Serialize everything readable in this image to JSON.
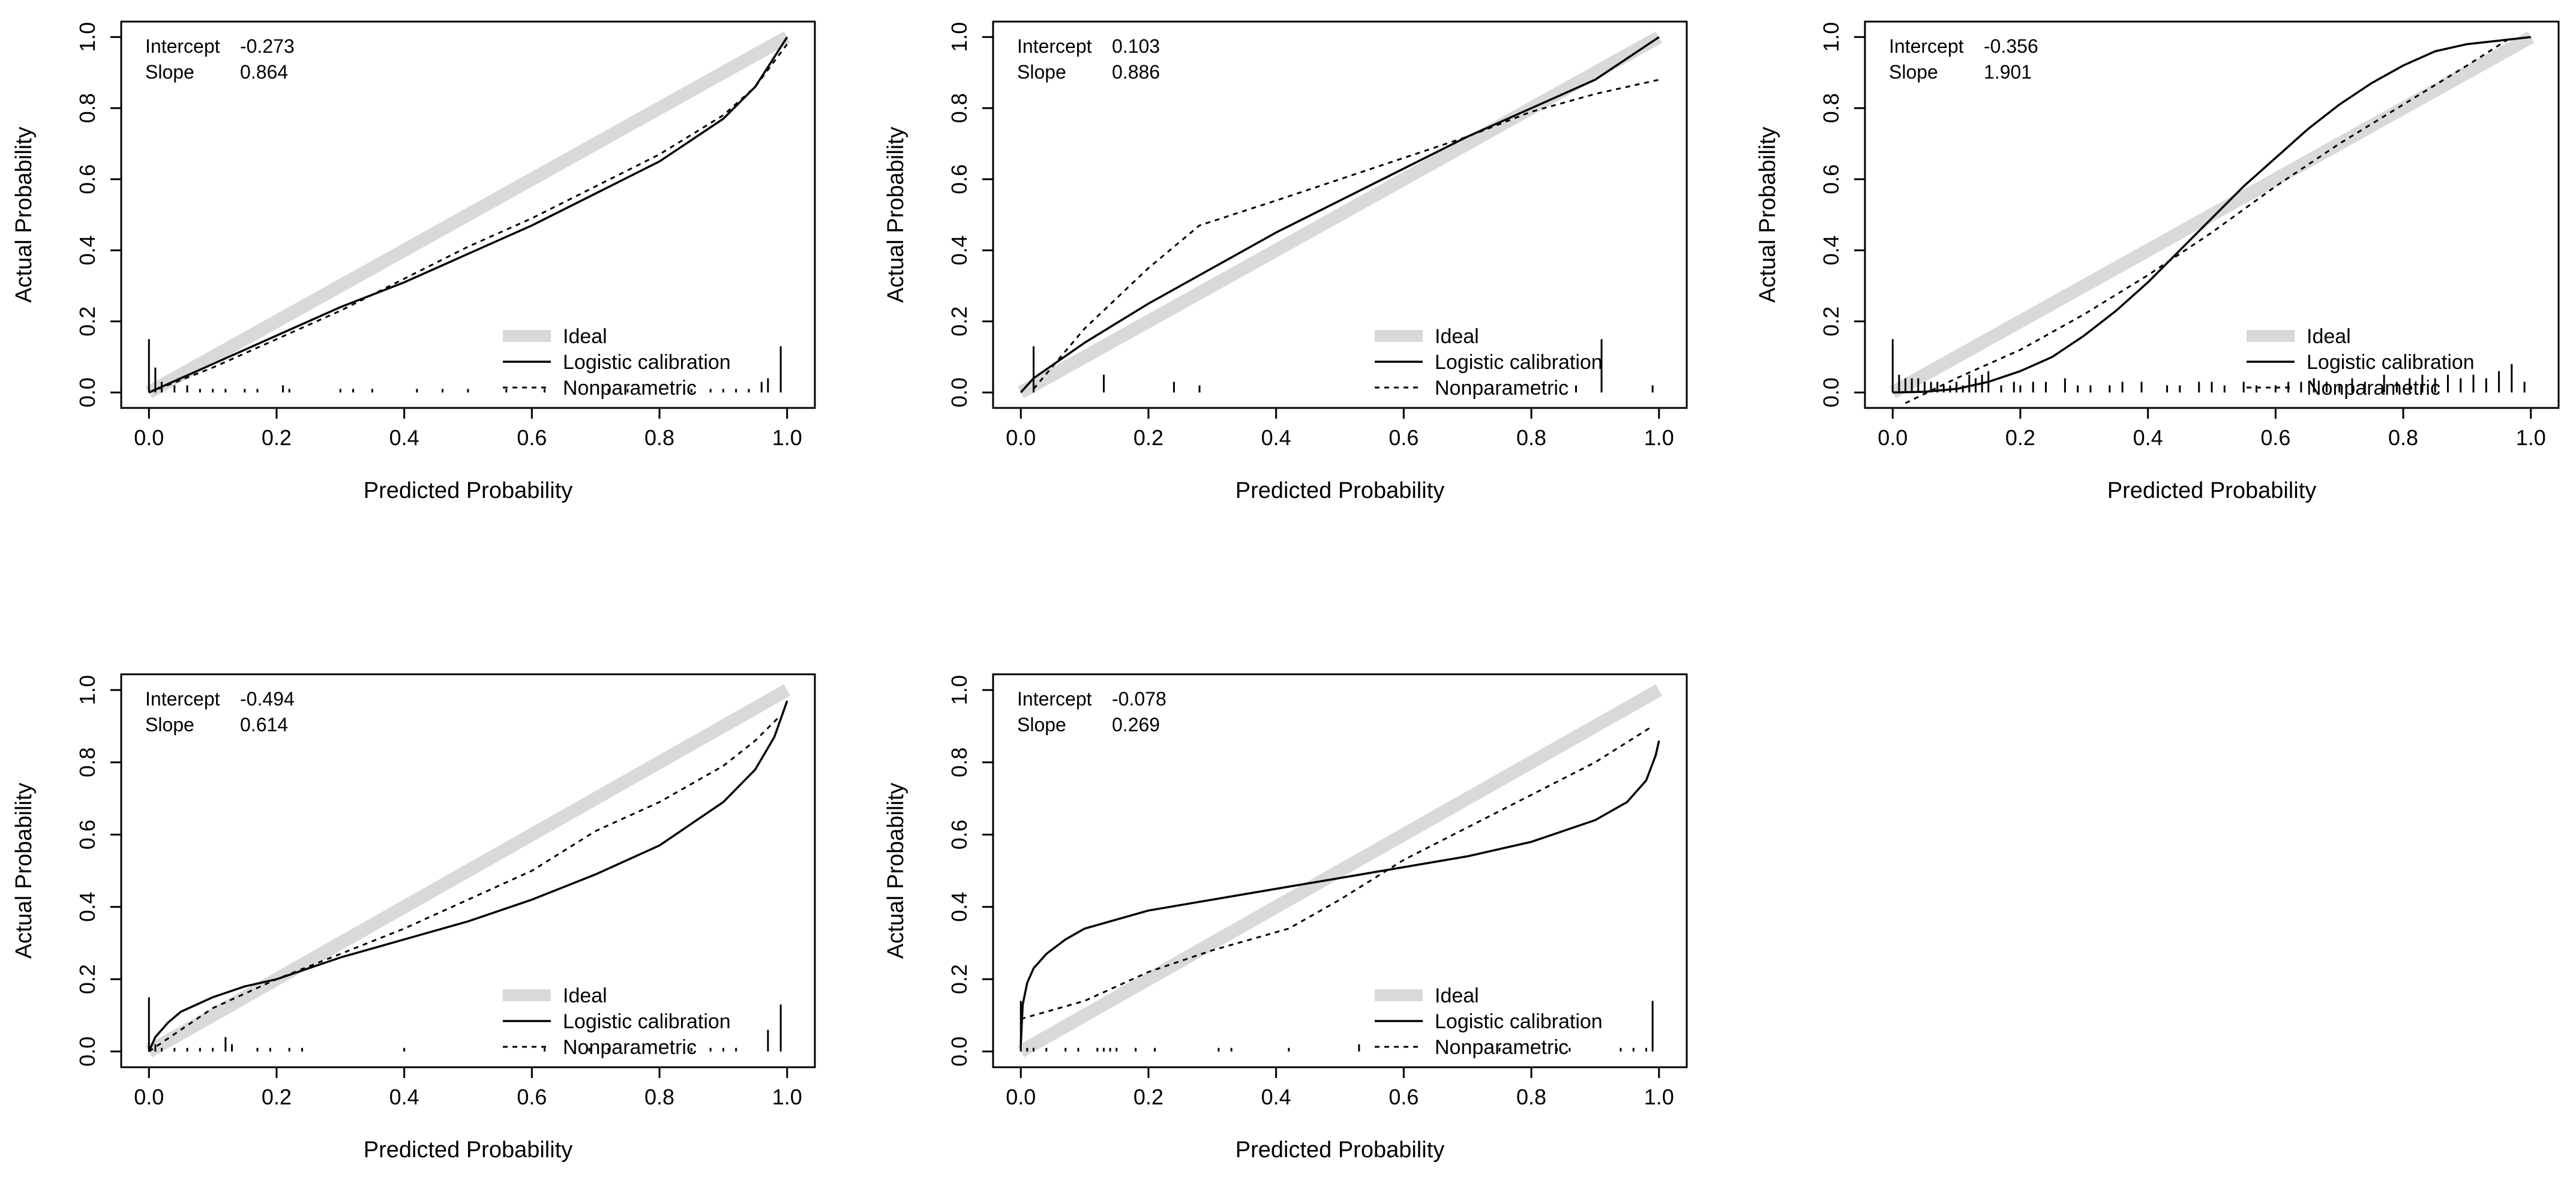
{
  "figure": {
    "axis_labels": {
      "x": "Predicted Probability",
      "y": "Actual Probability"
    },
    "ticks": [
      "0.0",
      "0.2",
      "0.4",
      "0.6",
      "0.8",
      "1.0"
    ],
    "legend": [
      "Ideal",
      "Logistic calibration",
      "Nonparametric"
    ],
    "stat_labels": {
      "intercept": "Intercept",
      "slope": "Slope"
    },
    "colors": {
      "ideal": "#d9d9d9",
      "lines": "#000000",
      "frame": "#000000",
      "background": "#ffffff"
    }
  },
  "chart_data": [
    {
      "type": "line",
      "title": "",
      "xlabel": "Predicted Probability",
      "ylabel": "Actual Probability",
      "xlim": [
        0,
        1
      ],
      "ylim": [
        0,
        1
      ],
      "intercept": "-0.273",
      "slope": "0.864",
      "legend_position": "bottom-right",
      "series": [
        {
          "name": "Ideal",
          "x": [
            0,
            1
          ],
          "y": [
            0,
            1
          ]
        },
        {
          "name": "Logistic calibration",
          "x": [
            0,
            0.05,
            0.1,
            0.2,
            0.3,
            0.4,
            0.5,
            0.6,
            0.7,
            0.8,
            0.9,
            0.95,
            1.0
          ],
          "y": [
            0,
            0.04,
            0.08,
            0.16,
            0.24,
            0.31,
            0.39,
            0.47,
            0.56,
            0.65,
            0.77,
            0.86,
            1.0
          ]
        },
        {
          "name": "Nonparametric",
          "x": [
            0,
            0.05,
            0.1,
            0.2,
            0.3,
            0.4,
            0.5,
            0.6,
            0.7,
            0.8,
            0.9,
            0.95,
            1.0
          ],
          "y": [
            0,
            0.035,
            0.07,
            0.15,
            0.23,
            0.32,
            0.41,
            0.49,
            0.58,
            0.67,
            0.78,
            0.86,
            0.98
          ]
        }
      ],
      "rug": [
        {
          "x": 0.0,
          "h": 0.15
        },
        {
          "x": 0.01,
          "h": 0.07
        },
        {
          "x": 0.02,
          "h": 0.03
        },
        {
          "x": 0.04,
          "h": 0.02
        },
        {
          "x": 0.06,
          "h": 0.02
        },
        {
          "x": 0.08,
          "h": 0.01
        },
        {
          "x": 0.1,
          "h": 0.01
        },
        {
          "x": 0.12,
          "h": 0.01
        },
        {
          "x": 0.15,
          "h": 0.01
        },
        {
          "x": 0.17,
          "h": 0.01
        },
        {
          "x": 0.21,
          "h": 0.02
        },
        {
          "x": 0.22,
          "h": 0.01
        },
        {
          "x": 0.3,
          "h": 0.01
        },
        {
          "x": 0.32,
          "h": 0.01
        },
        {
          "x": 0.35,
          "h": 0.01
        },
        {
          "x": 0.42,
          "h": 0.01
        },
        {
          "x": 0.46,
          "h": 0.01
        },
        {
          "x": 0.5,
          "h": 0.01
        },
        {
          "x": 0.56,
          "h": 0.01
        },
        {
          "x": 0.62,
          "h": 0.01
        },
        {
          "x": 0.72,
          "h": 0.01
        },
        {
          "x": 0.75,
          "h": 0.01
        },
        {
          "x": 0.85,
          "h": 0.01
        },
        {
          "x": 0.88,
          "h": 0.01
        },
        {
          "x": 0.9,
          "h": 0.01
        },
        {
          "x": 0.92,
          "h": 0.01
        },
        {
          "x": 0.94,
          "h": 0.01
        },
        {
          "x": 0.96,
          "h": 0.03
        },
        {
          "x": 0.97,
          "h": 0.04
        },
        {
          "x": 0.99,
          "h": 0.13
        }
      ]
    },
    {
      "type": "line",
      "title": "",
      "xlabel": "Predicted Probability",
      "ylabel": "Actual Probability",
      "xlim": [
        0,
        1
      ],
      "ylim": [
        0,
        1
      ],
      "intercept": "0.103",
      "slope": "0.886",
      "legend_position": "bottom-right",
      "series": [
        {
          "name": "Ideal",
          "x": [
            0,
            1
          ],
          "y": [
            0,
            1
          ]
        },
        {
          "name": "Logistic calibration",
          "x": [
            0.0,
            0.02,
            0.1,
            0.2,
            0.3,
            0.4,
            0.5,
            0.6,
            0.7,
            0.8,
            0.9,
            1.0
          ],
          "y": [
            0.0,
            0.04,
            0.14,
            0.25,
            0.35,
            0.45,
            0.54,
            0.63,
            0.72,
            0.8,
            0.88,
            1.0
          ]
        },
        {
          "name": "Nonparametric",
          "x": [
            0.02,
            0.1,
            0.2,
            0.28,
            0.4,
            0.5,
            0.6,
            0.7,
            0.8,
            0.9,
            1.0
          ],
          "y": [
            0.01,
            0.18,
            0.35,
            0.47,
            0.54,
            0.6,
            0.66,
            0.72,
            0.79,
            0.84,
            0.88
          ]
        }
      ],
      "rug": [
        {
          "x": 0.02,
          "h": 0.13
        },
        {
          "x": 0.13,
          "h": 0.05
        },
        {
          "x": 0.24,
          "h": 0.03
        },
        {
          "x": 0.28,
          "h": 0.02
        },
        {
          "x": 0.87,
          "h": 0.02
        },
        {
          "x": 0.91,
          "h": 0.15
        },
        {
          "x": 0.99,
          "h": 0.02
        }
      ]
    },
    {
      "type": "line",
      "title": "",
      "xlabel": "Predicted Probability",
      "ylabel": "Actual Probability",
      "xlim": [
        0,
        1
      ],
      "ylim": [
        0,
        1
      ],
      "intercept": "-0.356",
      "slope": "1.901",
      "legend_position": "bottom-right",
      "series": [
        {
          "name": "Ideal",
          "x": [
            0,
            1
          ],
          "y": [
            0,
            1
          ]
        },
        {
          "name": "Logistic calibration",
          "x": [
            0.0,
            0.05,
            0.1,
            0.15,
            0.2,
            0.25,
            0.3,
            0.35,
            0.4,
            0.45,
            0.5,
            0.55,
            0.6,
            0.65,
            0.7,
            0.75,
            0.8,
            0.85,
            0.9,
            0.95,
            1.0
          ],
          "y": [
            0.0,
            0.002,
            0.01,
            0.03,
            0.06,
            0.1,
            0.16,
            0.23,
            0.31,
            0.4,
            0.49,
            0.58,
            0.66,
            0.74,
            0.81,
            0.87,
            0.92,
            0.96,
            0.98,
            0.99,
            1.0
          ]
        },
        {
          "name": "Nonparametric",
          "x": [
            0.02,
            0.1,
            0.2,
            0.3,
            0.4,
            0.5,
            0.6,
            0.7,
            0.8,
            0.9,
            0.97
          ],
          "y": [
            -0.03,
            0.04,
            0.12,
            0.22,
            0.33,
            0.45,
            0.58,
            0.7,
            0.81,
            0.92,
            1.0
          ]
        }
      ],
      "rug": [
        {
          "x": 0.0,
          "h": 0.15
        },
        {
          "x": 0.01,
          "h": 0.05
        },
        {
          "x": 0.02,
          "h": 0.04
        },
        {
          "x": 0.03,
          "h": 0.04
        },
        {
          "x": 0.04,
          "h": 0.04
        },
        {
          "x": 0.05,
          "h": 0.03
        },
        {
          "x": 0.06,
          "h": 0.03
        },
        {
          "x": 0.07,
          "h": 0.03
        },
        {
          "x": 0.08,
          "h": 0.02
        },
        {
          "x": 0.09,
          "h": 0.02
        },
        {
          "x": 0.1,
          "h": 0.03
        },
        {
          "x": 0.11,
          "h": 0.02
        },
        {
          "x": 0.12,
          "h": 0.05
        },
        {
          "x": 0.13,
          "h": 0.04
        },
        {
          "x": 0.14,
          "h": 0.05
        },
        {
          "x": 0.15,
          "h": 0.06
        },
        {
          "x": 0.17,
          "h": 0.02
        },
        {
          "x": 0.19,
          "h": 0.03
        },
        {
          "x": 0.2,
          "h": 0.02
        },
        {
          "x": 0.22,
          "h": 0.03
        },
        {
          "x": 0.24,
          "h": 0.03
        },
        {
          "x": 0.27,
          "h": 0.04
        },
        {
          "x": 0.29,
          "h": 0.02
        },
        {
          "x": 0.31,
          "h": 0.02
        },
        {
          "x": 0.34,
          "h": 0.02
        },
        {
          "x": 0.36,
          "h": 0.03
        },
        {
          "x": 0.39,
          "h": 0.03
        },
        {
          "x": 0.43,
          "h": 0.02
        },
        {
          "x": 0.45,
          "h": 0.02
        },
        {
          "x": 0.48,
          "h": 0.03
        },
        {
          "x": 0.5,
          "h": 0.03
        },
        {
          "x": 0.52,
          "h": 0.02
        },
        {
          "x": 0.55,
          "h": 0.03
        },
        {
          "x": 0.57,
          "h": 0.02
        },
        {
          "x": 0.6,
          "h": 0.02
        },
        {
          "x": 0.62,
          "h": 0.03
        },
        {
          "x": 0.64,
          "h": 0.03
        },
        {
          "x": 0.66,
          "h": 0.04
        },
        {
          "x": 0.68,
          "h": 0.03
        },
        {
          "x": 0.7,
          "h": 0.02
        },
        {
          "x": 0.72,
          "h": 0.04
        },
        {
          "x": 0.74,
          "h": 0.03
        },
        {
          "x": 0.77,
          "h": 0.05
        },
        {
          "x": 0.79,
          "h": 0.03
        },
        {
          "x": 0.81,
          "h": 0.04
        },
        {
          "x": 0.83,
          "h": 0.05
        },
        {
          "x": 0.85,
          "h": 0.04
        },
        {
          "x": 0.87,
          "h": 0.05
        },
        {
          "x": 0.89,
          "h": 0.04
        },
        {
          "x": 0.91,
          "h": 0.05
        },
        {
          "x": 0.93,
          "h": 0.04
        },
        {
          "x": 0.95,
          "h": 0.06
        },
        {
          "x": 0.97,
          "h": 0.08
        },
        {
          "x": 0.99,
          "h": 0.03
        }
      ]
    },
    {
      "type": "line",
      "title": "",
      "xlabel": "Predicted Probability",
      "ylabel": "Actual Probability",
      "xlim": [
        0,
        1
      ],
      "ylim": [
        0,
        1
      ],
      "intercept": "-0.494",
      "slope": "0.614",
      "legend_position": "bottom-right",
      "series": [
        {
          "name": "Ideal",
          "x": [
            0,
            1
          ],
          "y": [
            0,
            1
          ]
        },
        {
          "name": "Logistic calibration",
          "x": [
            0.0,
            0.01,
            0.03,
            0.05,
            0.1,
            0.15,
            0.2,
            0.3,
            0.4,
            0.5,
            0.6,
            0.7,
            0.8,
            0.9,
            0.95,
            0.98,
            1.0
          ],
          "y": [
            0.0,
            0.04,
            0.08,
            0.11,
            0.15,
            0.18,
            0.2,
            0.26,
            0.31,
            0.36,
            0.42,
            0.49,
            0.57,
            0.69,
            0.78,
            0.87,
            0.97
          ]
        },
        {
          "name": "Nonparametric",
          "x": [
            0.0,
            0.05,
            0.1,
            0.2,
            0.3,
            0.4,
            0.5,
            0.6,
            0.7,
            0.8,
            0.9,
            0.95,
            0.99
          ],
          "y": [
            0.0,
            0.06,
            0.12,
            0.2,
            0.27,
            0.34,
            0.42,
            0.5,
            0.61,
            0.69,
            0.79,
            0.86,
            0.93
          ]
        }
      ],
      "rug": [
        {
          "x": 0.0,
          "h": 0.15
        },
        {
          "x": 0.01,
          "h": 0.02
        },
        {
          "x": 0.02,
          "h": 0.01
        },
        {
          "x": 0.04,
          "h": 0.01
        },
        {
          "x": 0.06,
          "h": 0.01
        },
        {
          "x": 0.08,
          "h": 0.01
        },
        {
          "x": 0.1,
          "h": 0.01
        },
        {
          "x": 0.12,
          "h": 0.04
        },
        {
          "x": 0.13,
          "h": 0.02
        },
        {
          "x": 0.17,
          "h": 0.01
        },
        {
          "x": 0.19,
          "h": 0.01
        },
        {
          "x": 0.22,
          "h": 0.01
        },
        {
          "x": 0.24,
          "h": 0.01
        },
        {
          "x": 0.4,
          "h": 0.01
        },
        {
          "x": 0.62,
          "h": 0.01
        },
        {
          "x": 0.69,
          "h": 0.01
        },
        {
          "x": 0.72,
          "h": 0.01
        },
        {
          "x": 0.85,
          "h": 0.01
        },
        {
          "x": 0.88,
          "h": 0.01
        },
        {
          "x": 0.9,
          "h": 0.01
        },
        {
          "x": 0.92,
          "h": 0.01
        },
        {
          "x": 0.97,
          "h": 0.06
        },
        {
          "x": 0.99,
          "h": 0.13
        }
      ]
    },
    {
      "type": "line",
      "title": "",
      "xlabel": "Predicted Probability",
      "ylabel": "Actual Probability",
      "xlim": [
        0,
        1
      ],
      "ylim": [
        0,
        1
      ],
      "intercept": "-0.078",
      "slope": "0.269",
      "legend_position": "bottom-right",
      "series": [
        {
          "name": "Ideal",
          "x": [
            0,
            1
          ],
          "y": [
            0,
            1
          ]
        },
        {
          "name": "Logistic calibration",
          "x": [
            0.0,
            0.003,
            0.01,
            0.02,
            0.04,
            0.07,
            0.1,
            0.2,
            0.3,
            0.4,
            0.5,
            0.6,
            0.7,
            0.8,
            0.9,
            0.95,
            0.98,
            0.995,
            1.0
          ],
          "y": [
            0.02,
            0.13,
            0.19,
            0.23,
            0.27,
            0.31,
            0.34,
            0.39,
            0.42,
            0.45,
            0.48,
            0.51,
            0.54,
            0.58,
            0.64,
            0.69,
            0.75,
            0.82,
            0.86
          ]
        },
        {
          "name": "Nonparametric",
          "x": [
            0.0,
            0.1,
            0.2,
            0.3,
            0.42,
            0.5,
            0.6,
            0.7,
            0.8,
            0.9,
            0.99
          ],
          "y": [
            0.09,
            0.14,
            0.22,
            0.28,
            0.34,
            0.42,
            0.53,
            0.62,
            0.71,
            0.8,
            0.9
          ]
        }
      ],
      "rug": [
        {
          "x": 0.0,
          "h": 0.14
        },
        {
          "x": 0.01,
          "h": 0.01
        },
        {
          "x": 0.02,
          "h": 0.01
        },
        {
          "x": 0.04,
          "h": 0.01
        },
        {
          "x": 0.07,
          "h": 0.01
        },
        {
          "x": 0.09,
          "h": 0.01
        },
        {
          "x": 0.12,
          "h": 0.01
        },
        {
          "x": 0.13,
          "h": 0.01
        },
        {
          "x": 0.14,
          "h": 0.01
        },
        {
          "x": 0.15,
          "h": 0.01
        },
        {
          "x": 0.18,
          "h": 0.01
        },
        {
          "x": 0.21,
          "h": 0.01
        },
        {
          "x": 0.31,
          "h": 0.01
        },
        {
          "x": 0.33,
          "h": 0.01
        },
        {
          "x": 0.42,
          "h": 0.01
        },
        {
          "x": 0.53,
          "h": 0.02
        },
        {
          "x": 0.75,
          "h": 0.01
        },
        {
          "x": 0.84,
          "h": 0.01
        },
        {
          "x": 0.86,
          "h": 0.01
        },
        {
          "x": 0.94,
          "h": 0.01
        },
        {
          "x": 0.96,
          "h": 0.01
        },
        {
          "x": 0.98,
          "h": 0.01
        },
        {
          "x": 0.99,
          "h": 0.14
        }
      ]
    }
  ]
}
